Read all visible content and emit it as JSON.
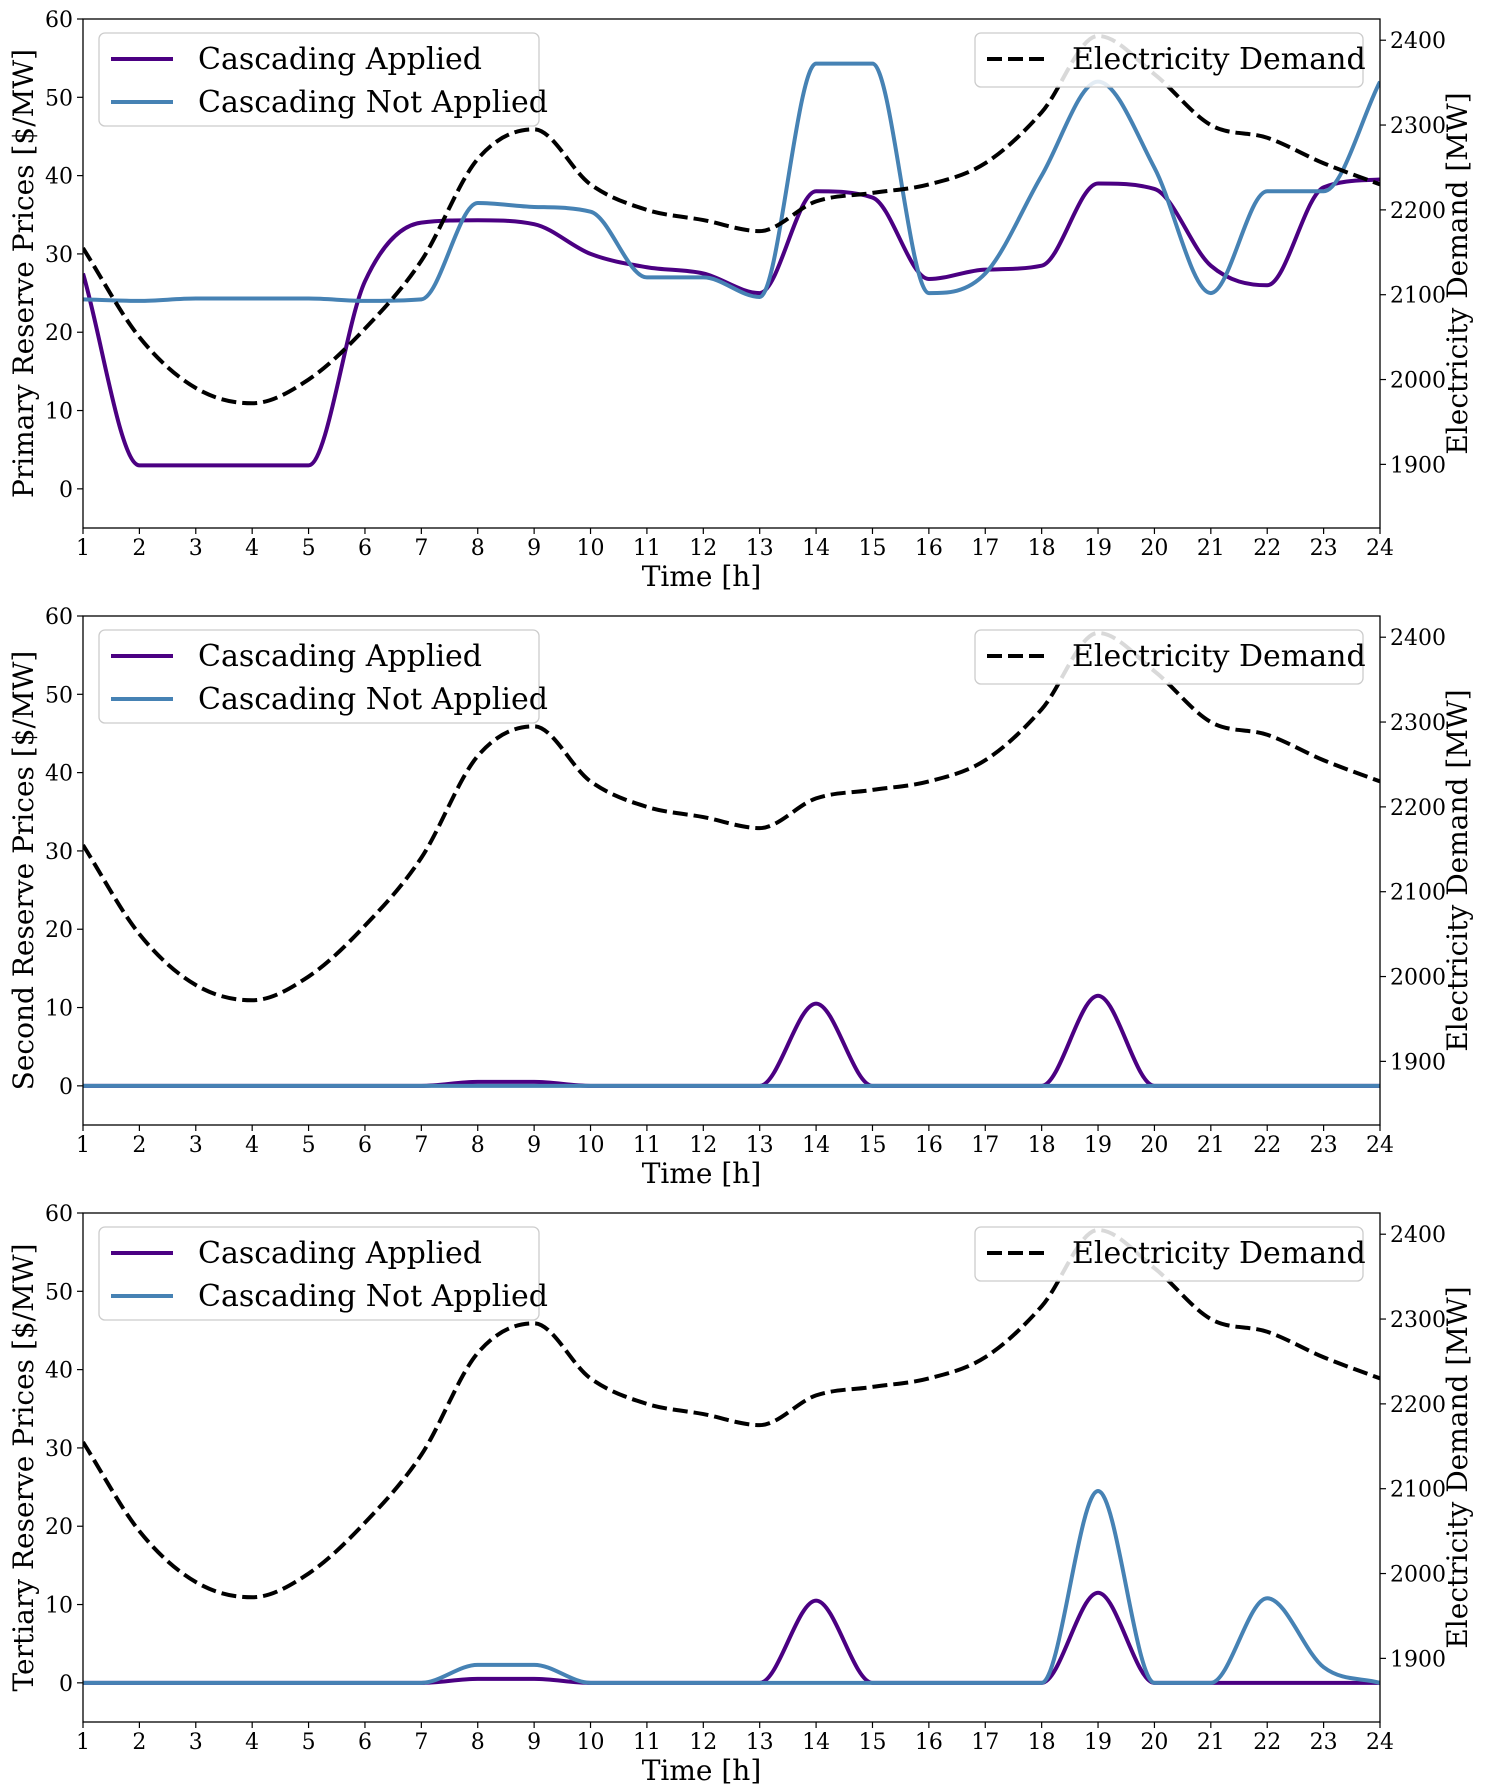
{
  "chart_data": [
    {
      "type": "line",
      "xlabel": "Time [h]",
      "ylabel": "Primary Reserve Prices [$/MW]",
      "y2label": "Electricity Demand [MW]",
      "x": [
        1,
        2,
        3,
        4,
        5,
        6,
        7,
        8,
        9,
        10,
        11,
        12,
        13,
        14,
        15,
        16,
        17,
        18,
        19,
        20,
        21,
        22,
        23,
        24
      ],
      "xlim": [
        1,
        24
      ],
      "ylim": [
        -5,
        60
      ],
      "yticks": [
        0,
        10,
        20,
        30,
        40,
        50,
        60
      ],
      "y2lim": [
        1825,
        2425
      ],
      "y2ticks": [
        1900,
        2000,
        2100,
        2200,
        2300,
        2400
      ],
      "legend_left": "upper-left",
      "legend_right": "upper-right",
      "series": [
        {
          "name": "Cascading Applied",
          "axis": "left",
          "color": "#4b0082",
          "dash": "solid",
          "values": [
            27.5,
            3,
            3,
            3,
            3,
            26.5,
            34,
            34.3,
            33.8,
            30,
            28.3,
            27.5,
            25,
            38,
            37.2,
            26.8,
            28,
            28.5,
            39,
            38.3,
            28.5,
            26,
            38.5,
            39.5
          ]
        },
        {
          "name": "Cascading Not Applied",
          "axis": "left",
          "color": "#4682b4",
          "dash": "solid",
          "values": [
            24.2,
            24,
            24.3,
            24.3,
            24.3,
            24,
            24.2,
            36.5,
            36,
            35.4,
            27,
            27,
            24.5,
            54.3,
            54.3,
            25,
            27.5,
            40,
            52,
            41,
            25,
            38,
            38,
            52
          ]
        },
        {
          "name": "Electricity Demand",
          "axis": "right",
          "color": "#000000",
          "dash": "dashed",
          "values": [
            2155,
            2050,
            1990,
            1972,
            2000,
            2060,
            2140,
            2260,
            2295,
            2230,
            2200,
            2188,
            2175,
            2210,
            2220,
            2230,
            2255,
            2315,
            2405,
            2360,
            2300,
            2285,
            2255,
            2230
          ]
        }
      ]
    },
    {
      "type": "line",
      "xlabel": "Time [h]",
      "ylabel": "Second Reserve Prices [$/MW]",
      "y2label": "Electricity Demand [MW]",
      "x": [
        1,
        2,
        3,
        4,
        5,
        6,
        7,
        8,
        9,
        10,
        11,
        12,
        13,
        14,
        15,
        16,
        17,
        18,
        19,
        20,
        21,
        22,
        23,
        24
      ],
      "xlim": [
        1,
        24
      ],
      "ylim": [
        -5,
        60
      ],
      "yticks": [
        0,
        10,
        20,
        30,
        40,
        50,
        60
      ],
      "y2lim": [
        1825,
        2425
      ],
      "y2ticks": [
        1900,
        2000,
        2100,
        2200,
        2300,
        2400
      ],
      "legend_left": "upper-left",
      "legend_right": "upper-right",
      "series": [
        {
          "name": "Cascading Applied",
          "axis": "left",
          "color": "#4b0082",
          "dash": "solid",
          "values": [
            0,
            0,
            0,
            0,
            0,
            0,
            0,
            0.5,
            0.5,
            0,
            0,
            0,
            0,
            10.5,
            0,
            0,
            0,
            0,
            11.5,
            0,
            0,
            0,
            0,
            0
          ]
        },
        {
          "name": "Cascading Not Applied",
          "axis": "left",
          "color": "#4682b4",
          "dash": "solid",
          "values": [
            0,
            0,
            0,
            0,
            0,
            0,
            0,
            0,
            0,
            0,
            0,
            0,
            0,
            0,
            0,
            0,
            0,
            0,
            0,
            0,
            0,
            0,
            0,
            0
          ]
        },
        {
          "name": "Electricity Demand",
          "axis": "right",
          "color": "#000000",
          "dash": "dashed",
          "values": [
            2155,
            2050,
            1990,
            1972,
            2000,
            2060,
            2140,
            2260,
            2295,
            2230,
            2200,
            2188,
            2175,
            2210,
            2220,
            2230,
            2255,
            2315,
            2405,
            2360,
            2300,
            2285,
            2255,
            2230
          ]
        }
      ]
    },
    {
      "type": "line",
      "xlabel": "Time [h]",
      "ylabel": "Tertiary Reserve Prices [$/MW]",
      "y2label": "Electricity Demand [MW]",
      "x": [
        1,
        2,
        3,
        4,
        5,
        6,
        7,
        8,
        9,
        10,
        11,
        12,
        13,
        14,
        15,
        16,
        17,
        18,
        19,
        20,
        21,
        22,
        23,
        24
      ],
      "xlim": [
        1,
        24
      ],
      "ylim": [
        -5,
        60
      ],
      "yticks": [
        0,
        10,
        20,
        30,
        40,
        50,
        60
      ],
      "y2lim": [
        1825,
        2425
      ],
      "y2ticks": [
        1900,
        2000,
        2100,
        2200,
        2300,
        2400
      ],
      "legend_left": "upper-left",
      "legend_right": "upper-right",
      "series": [
        {
          "name": "Cascading Applied",
          "axis": "left",
          "color": "#4b0082",
          "dash": "solid",
          "values": [
            0,
            0,
            0,
            0,
            0,
            0,
            0,
            0.5,
            0.5,
            0,
            0,
            0,
            0,
            10.5,
            0,
            0,
            0,
            0,
            11.5,
            0,
            0,
            0,
            0,
            0
          ]
        },
        {
          "name": "Cascading Not Applied",
          "axis": "left",
          "color": "#4682b4",
          "dash": "solid",
          "values": [
            0,
            0,
            0,
            0,
            0,
            0,
            0,
            2.3,
            2.3,
            0,
            0,
            0,
            0,
            0,
            0,
            0,
            0,
            0,
            24.5,
            0,
            0,
            10.8,
            2,
            0
          ]
        },
        {
          "name": "Electricity Demand",
          "axis": "right",
          "color": "#000000",
          "dash": "dashed",
          "values": [
            2155,
            2050,
            1990,
            1972,
            2000,
            2060,
            2140,
            2260,
            2295,
            2230,
            2200,
            2188,
            2175,
            2210,
            2220,
            2230,
            2255,
            2315,
            2405,
            2360,
            2300,
            2285,
            2255,
            2230
          ]
        }
      ]
    }
  ]
}
